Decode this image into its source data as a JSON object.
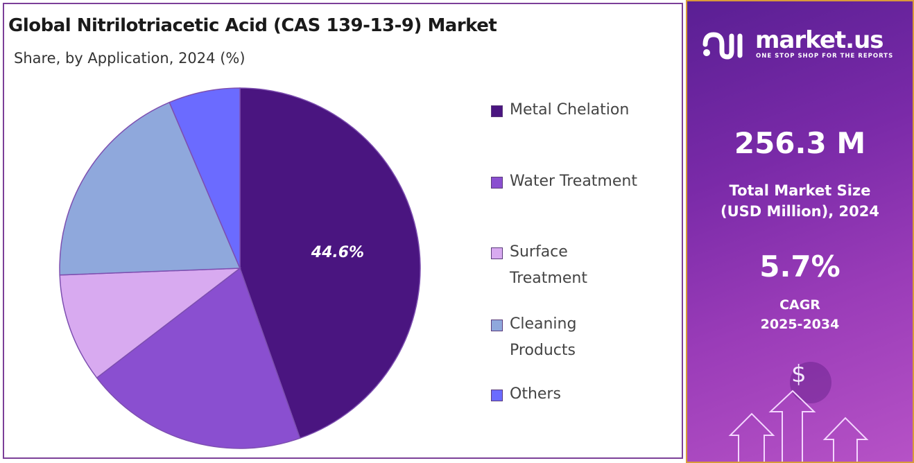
{
  "title": "Global Nitrilotriacetic Acid (CAS 139-13-9) Market",
  "subtitle": "Share, by Application, 2024 (%)",
  "chart_data": {
    "type": "pie",
    "title": "Global Nitrilotriacetic Acid (CAS 139-13-9) Market",
    "subtitle": "Share, by Application, 2024 (%)",
    "categories": [
      "Metal Chelation",
      "Water Treatment",
      "Surface Treatment",
      "Cleaning Products",
      "Others"
    ],
    "values": [
      44.6,
      20.0,
      9.8,
      19.2,
      6.4
    ],
    "colors": [
      "#4a1580",
      "#8a4fd0",
      "#d8aaf0",
      "#8fa8dc",
      "#6b6bff"
    ],
    "data_labels": [
      "44.6%",
      "",
      "",
      "",
      ""
    ],
    "legend": "right"
  },
  "legend": [
    {
      "line1": "Metal Chelation",
      "line2": ""
    },
    {
      "line1": "Water Treatment",
      "line2": ""
    },
    {
      "line1": "Surface",
      "line2": "Treatment"
    },
    {
      "line1": "Cleaning",
      "line2": "Products"
    },
    {
      "line1": "Others",
      "line2": ""
    }
  ],
  "panel": {
    "brand": "market.us",
    "tagline": "ONE STOP SHOP FOR THE REPORTS",
    "market_size": "256.3 M",
    "market_size_label1": "Total Market Size",
    "market_size_label2": "(USD Million), 2024",
    "cagr": "5.7%",
    "cagr_label1": "CAGR",
    "cagr_label2": "2025-2034",
    "dollar": "$"
  }
}
